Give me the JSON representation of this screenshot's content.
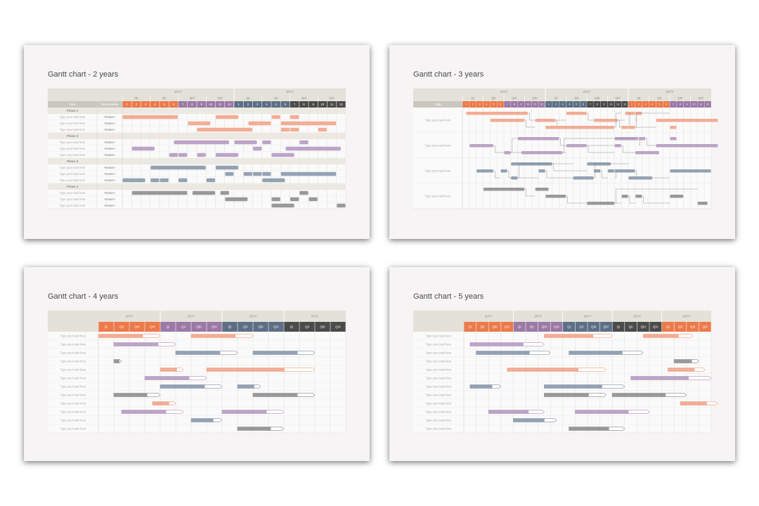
{
  "colors": {
    "orange": "#ec7a4a",
    "purple": "#9b79a6",
    "blue": "#5d6f85",
    "gray": "#4b4b4b",
    "header": "#e3e1d8",
    "task_header": "#c9c7be",
    "phase": "#ebe9e1",
    "bar_orange": "#f2ad95",
    "bar_purple": "#bca3c7",
    "bar_blue": "#93a2b3",
    "bar_gray": "#999999"
  },
  "slides": [
    {
      "title": "Gantt chart - 2 years",
      "years": [
        "20YY",
        "20YY"
      ],
      "quarters": [
        "QI",
        "QII",
        "QIII",
        "QIV"
      ],
      "months": [
        "1",
        "2",
        "3",
        "4",
        "5",
        "6",
        "7",
        "8",
        "9",
        "10",
        "11",
        "12"
      ],
      "col_task": "Task",
      "col_resp": "Responsible",
      "task_label": "Type your task here",
      "name_label": "<Name>",
      "phases": [
        "Phase 1",
        "Phase 2",
        "Phase 3",
        "Phase 4"
      ]
    },
    {
      "title": "Gantt chart - 3 years",
      "years": [
        "20YY",
        "20YY",
        "20YY"
      ],
      "quarters": [
        "QI",
        "QII",
        "QIII",
        "QIV"
      ],
      "months": [
        "1",
        "2",
        "3",
        "4",
        "5",
        "6",
        "7",
        "8",
        "9",
        "10",
        "11",
        "12"
      ],
      "col_task": "Task",
      "task_label": "Type your task here"
    },
    {
      "title": "Gantt chart - 4 years",
      "years": [
        "20YY",
        "20YY",
        "20YY",
        "20YY"
      ],
      "quarters": [
        "QI",
        "QII",
        "QIII",
        "QIV"
      ],
      "task_label": "Type your task here"
    },
    {
      "title": "Gantt chart - 5 years",
      "years": [
        "20YY",
        "20YY",
        "20YY",
        "20YY",
        "20YY"
      ],
      "quarters": [
        "QI",
        "QII",
        "QIII",
        "QIV"
      ],
      "task_label": "Type your task here"
    }
  ],
  "chart_data": [
    {
      "type": "gantt",
      "title": "Gantt chart - 2 years",
      "unit": "month",
      "span": 24,
      "rows": [
        {
          "phase": "Phase 1"
        },
        {
          "task": "Type your task here",
          "name": "<Name>",
          "bars": [
            [
              0,
              6,
              "orange"
            ],
            [
              10,
              2.5,
              "orange"
            ],
            [
              16,
              1,
              "orange"
            ],
            [
              18,
              1,
              "orange"
            ]
          ]
        },
        {
          "task": "Type your task here",
          "name": "<Name>",
          "bars": [
            [
              7,
              2.5,
              "orange"
            ],
            [
              13.5,
              2.5,
              "orange"
            ],
            [
              17,
              6,
              "orange"
            ]
          ]
        },
        {
          "task": "Type your task here",
          "name": "<Name>",
          "bars": [
            [
              8,
              6,
              "orange"
            ],
            [
              17,
              1,
              "orange"
            ],
            [
              18,
              1,
              "orange"
            ],
            [
              21,
              1,
              "orange"
            ]
          ]
        },
        {
          "phase": "Phase 2"
        },
        {
          "task": "Type your task here",
          "name": "<Name>",
          "bars": [
            [
              5.5,
              6,
              "purple"
            ],
            [
              12,
              2.5,
              "purple"
            ],
            [
              15,
              1,
              "purple"
            ],
            [
              19,
              1,
              "purple"
            ]
          ]
        },
        {
          "task": "Type your task here",
          "name": "<Name>",
          "bars": [
            [
              1,
              2.5,
              "purple"
            ],
            [
              14,
              1,
              "purple"
            ],
            [
              17.5,
              6,
              "purple"
            ]
          ]
        },
        {
          "task": "Type your task here",
          "name": "<Name>",
          "bars": [
            [
              5,
              1,
              "purple"
            ],
            [
              6,
              1,
              "purple"
            ],
            [
              8,
              1,
              "purple"
            ],
            [
              10,
              2.5,
              "purple"
            ],
            [
              16,
              2.5,
              "purple"
            ]
          ]
        },
        {
          "phase": "Phase 3"
        },
        {
          "task": "Type your task here",
          "name": "<Name>",
          "bars": [
            [
              3,
              6,
              "blue"
            ],
            [
              10,
              2.5,
              "blue"
            ]
          ]
        },
        {
          "task": "Type your task here",
          "name": "<Name>",
          "bars": [
            [
              11,
              1,
              "blue"
            ],
            [
              13,
              1,
              "blue"
            ],
            [
              14,
              1,
              "blue"
            ],
            [
              15,
              1,
              "blue"
            ],
            [
              17,
              6,
              "blue"
            ]
          ]
        },
        {
          "task": "Type your task here",
          "name": "<Name>",
          "bars": [
            [
              0,
              2.5,
              "blue"
            ],
            [
              3,
              1,
              "blue"
            ],
            [
              4,
              1,
              "blue"
            ],
            [
              6,
              1,
              "blue"
            ],
            [
              9,
              1,
              "blue"
            ],
            [
              15,
              2.5,
              "blue"
            ]
          ]
        },
        {
          "phase": "Phase 4"
        },
        {
          "task": "Type your task here",
          "name": "<Name>",
          "bars": [
            [
              1,
              6,
              "gray"
            ],
            [
              7.5,
              2.5,
              "gray"
            ],
            [
              10.5,
              1,
              "gray"
            ],
            [
              19,
              1,
              "gray"
            ]
          ]
        },
        {
          "task": "Type your task here",
          "name": "<Name>",
          "bars": [
            [
              11,
              2.5,
              "gray"
            ],
            [
              16,
              1,
              "gray"
            ],
            [
              18,
              1,
              "gray"
            ],
            [
              20,
              1,
              "gray"
            ]
          ]
        },
        {
          "task": "Type your task here",
          "name": "<Name>",
          "bars": [
            [
              16,
              2.5,
              "gray"
            ],
            [
              23,
              1,
              "gray"
            ]
          ]
        }
      ]
    },
    {
      "type": "gantt",
      "title": "Gantt chart - 3 years",
      "unit": "month",
      "span": 36,
      "groups": [
        {
          "task": "Type your task here",
          "color": "orange",
          "lines": [
            [
              [
                0.5,
                9
              ],
              [
                15,
                3
              ],
              [
                23.5,
                1.5
              ],
              [
                25,
                1
              ]
            ],
            [
              [
                4,
                5
              ],
              [
                10.5,
                3
              ],
              [
                19,
                3.5
              ],
              [
                28,
                9
              ]
            ],
            [
              [
                12,
                10
              ],
              [
                23,
                1
              ],
              [
                24,
                1
              ],
              [
                30,
                1
              ]
            ]
          ]
        },
        {
          "task": "Type your task here",
          "color": "purple",
          "lines": [
            [
              [
                8,
                6
              ],
              [
                22,
                3.5
              ],
              [
                25.5,
                1
              ],
              [
                30,
                1
              ]
            ],
            [
              [
                1,
                3.5
              ],
              [
                15,
                3
              ],
              [
                22,
                1
              ],
              [
                28,
                9
              ]
            ],
            [
              [
                6,
                1
              ],
              [
                8.5,
                6
              ],
              [
                25,
                3.5
              ]
            ]
          ]
        },
        {
          "task": "Type your task here",
          "color": "blue",
          "lines": [
            [
              [
                7,
                6
              ],
              [
                18,
                3.5
              ]
            ],
            [
              [
                2,
                2.5
              ],
              [
                5.5,
                1
              ],
              [
                11,
                1
              ],
              [
                19,
                1
              ],
              [
                21,
                1
              ],
              [
                22,
                3
              ],
              [
                30,
                6
              ]
            ],
            [
              [
                7,
                1
              ],
              [
                16,
                3
              ],
              [
                24,
                3.5
              ]
            ]
          ]
        },
        {
          "task": "Type your task here",
          "color": "gray",
          "lines": [
            [
              [
                3,
                6
              ],
              [
                10.5,
                2
              ]
            ],
            [
              [
                12,
                3
              ],
              [
                23,
                1
              ],
              [
                25,
                1
              ],
              [
                30,
                2
              ]
            ],
            [
              [
                18,
                4
              ],
              [
                34,
                1.5
              ]
            ]
          ]
        }
      ]
    },
    {
      "type": "gantt",
      "title": "Gantt chart - 4 years",
      "unit": "quarter",
      "span": 16,
      "rows": [
        {
          "task": "Type your task here",
          "color": "orange",
          "bars": [
            [
              0,
              4
            ],
            [
              6,
              4
            ]
          ]
        },
        {
          "task": "Type your task here",
          "color": "purple",
          "bars": [
            [
              1,
              4
            ]
          ]
        },
        {
          "task": "Type your task here",
          "color": "blue",
          "bars": [
            [
              5,
              4
            ],
            [
              10,
              4
            ]
          ]
        },
        {
          "task": "Type your task here",
          "color": "gray",
          "bars": [
            [
              1,
              0.5
            ]
          ]
        },
        {
          "task": "Type your task here",
          "color": "orange",
          "bars": [
            [
              4,
              1.5
            ],
            [
              7,
              7
            ]
          ]
        },
        {
          "task": "Type your task here",
          "color": "purple",
          "bars": [
            [
              3,
              4
            ]
          ]
        },
        {
          "task": "Type your task here",
          "color": "blue",
          "bars": [
            [
              4,
              4
            ],
            [
              9,
              1.5
            ]
          ]
        },
        {
          "task": "Type your task here",
          "color": "gray",
          "bars": [
            [
              1,
              3
            ],
            [
              10,
              4
            ]
          ]
        },
        {
          "task": "Type your task here",
          "color": "orange",
          "bars": [
            [
              3.5,
              1.5
            ]
          ]
        },
        {
          "task": "Type your task here",
          "color": "purple",
          "bars": [
            [
              1.5,
              4
            ],
            [
              8,
              4
            ]
          ]
        },
        {
          "task": "Type your task here",
          "color": "blue",
          "bars": [
            [
              6,
              2
            ]
          ]
        },
        {
          "task": "Type your task here",
          "color": "gray",
          "bars": [
            [
              9,
              3
            ]
          ]
        }
      ]
    },
    {
      "type": "gantt",
      "title": "Gantt chart - 5 years",
      "unit": "quarter",
      "span": 20,
      "rows": [
        {
          "task": "Type your task here",
          "color": "orange",
          "bars": [
            [
              6.5,
              5.5
            ],
            [
              14.5,
              4
            ]
          ]
        },
        {
          "task": "Type your task here",
          "color": "purple",
          "bars": [
            [
              0.5,
              6
            ]
          ]
        },
        {
          "task": "Type your task here",
          "color": "blue",
          "bars": [
            [
              1,
              6
            ],
            [
              8.5,
              6
            ]
          ]
        },
        {
          "task": "Type your task here",
          "color": "gray",
          "bars": [
            [
              17,
              2
            ]
          ]
        },
        {
          "task": "Type your task here",
          "color": "orange",
          "bars": [
            [
              3.5,
              8
            ],
            [
              16.5,
              3
            ]
          ]
        },
        {
          "task": "Type your task here",
          "color": "purple",
          "bars": [
            [
              13.5,
              6.5
            ]
          ]
        },
        {
          "task": "Type your task here",
          "color": "blue",
          "bars": [
            [
              0.5,
              2.5
            ],
            [
              6.5,
              6.5
            ]
          ]
        },
        {
          "task": "Type your task here",
          "color": "gray",
          "bars": [
            [
              6.5,
              5
            ],
            [
              12,
              6
            ]
          ]
        },
        {
          "task": "Type your task here",
          "color": "orange",
          "bars": [
            [
              17.5,
              3
            ]
          ]
        },
        {
          "task": "Type your task here",
          "color": "purple",
          "bars": [
            [
              2,
              4.5
            ],
            [
              9,
              6
            ]
          ]
        },
        {
          "task": "Type your task here",
          "color": "blue",
          "bars": [
            [
              4,
              3.5
            ]
          ]
        },
        {
          "task": "Type your task here",
          "color": "gray",
          "bars": [
            [
              8.5,
              4.5
            ]
          ]
        }
      ]
    }
  ]
}
